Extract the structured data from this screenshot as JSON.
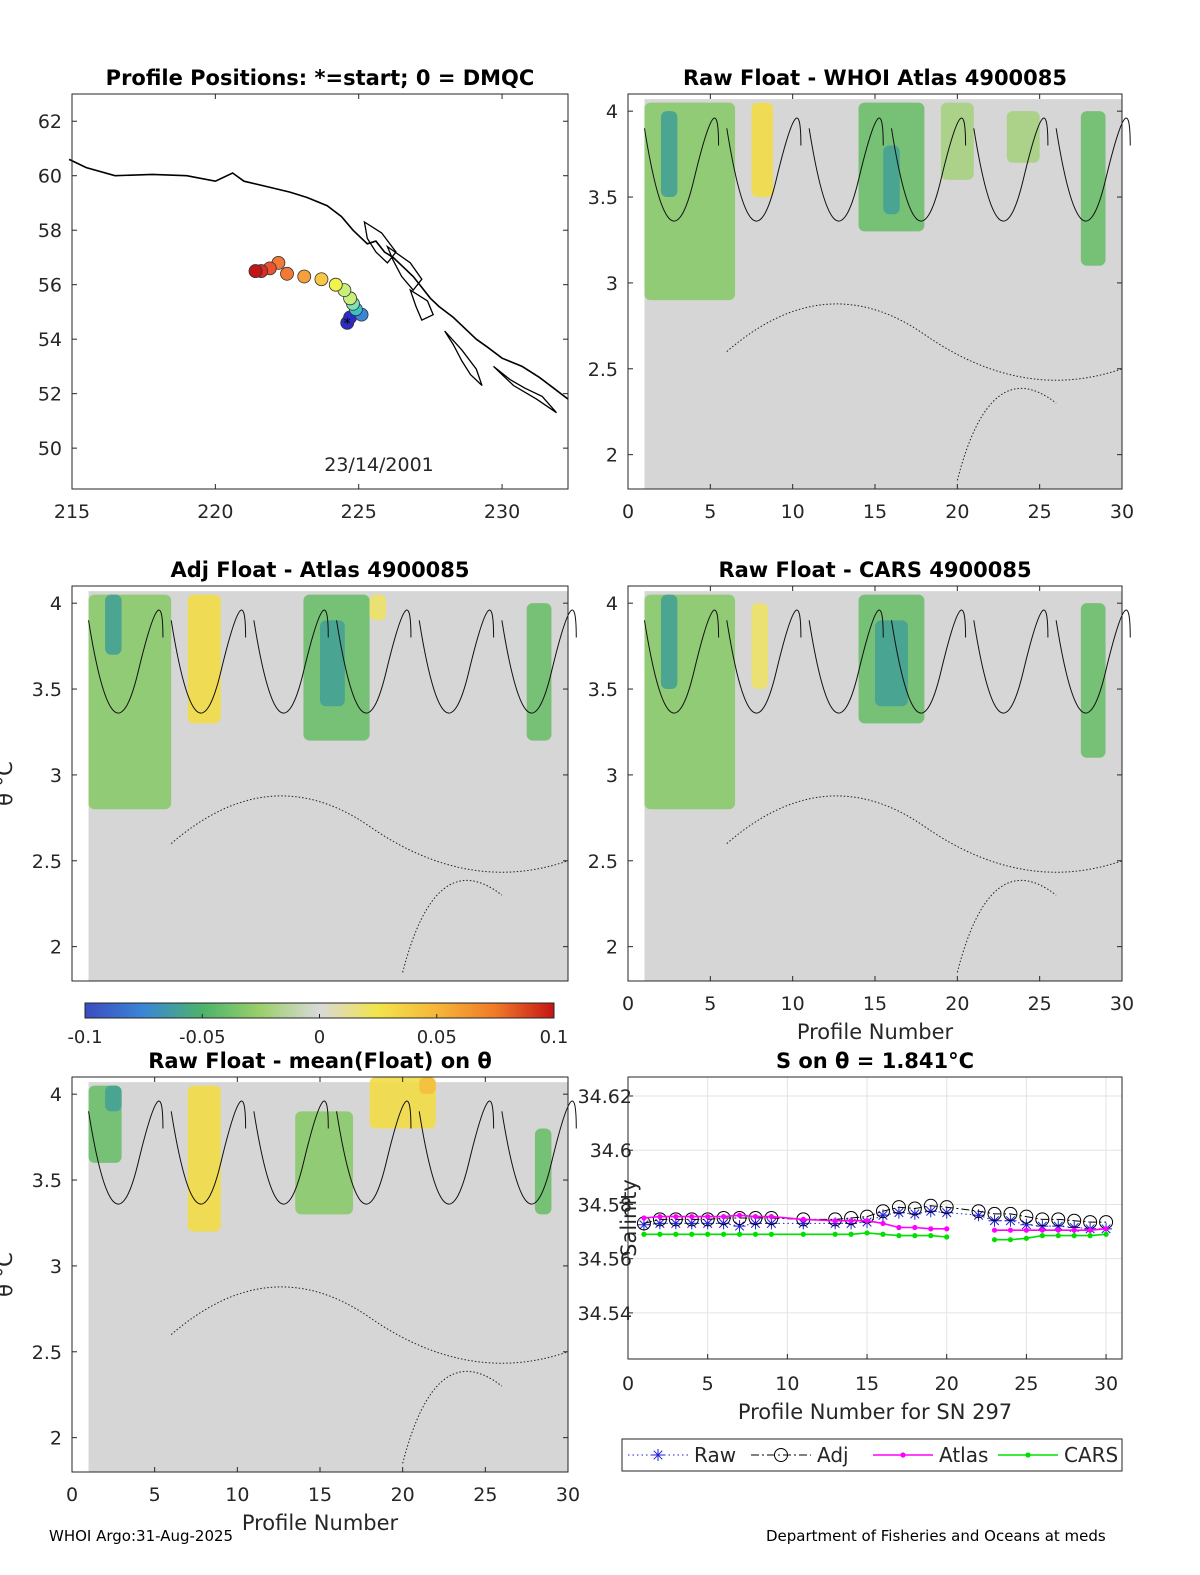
{
  "figure": {
    "footer_left": "WHOI Argo:31-Aug-2025",
    "footer_right": "Department of Fisheries and Oceans at meds"
  },
  "chart_data": [
    {
      "id": "map",
      "type": "scatter",
      "title": "Profile Positions: *=start; 0 = DMQC",
      "xlim": [
        215,
        232.3
      ],
      "ylim": [
        48.5,
        63.0
      ],
      "xticks": [
        "215",
        "220",
        "225",
        "230"
      ],
      "xtick_values": [
        215,
        220,
        225,
        230
      ],
      "yticks": [
        "50",
        "52",
        "54",
        "56",
        "58",
        "60",
        "62"
      ],
      "ytick_values": [
        50,
        52,
        54,
        56,
        58,
        60,
        62
      ],
      "annotation": "23/14/2001",
      "colors": [
        "#2b2bcc",
        "#3a86d6",
        "#37c2c8",
        "#7fe0b3",
        "#c8ef7a",
        "#f2f24d",
        "#f6c843",
        "#f6a03c",
        "#f27a35",
        "#e9532f",
        "#d92a24",
        "#c41515"
      ],
      "points": [
        {
          "lon": 224.6,
          "lat": 54.6
        },
        {
          "lon": 224.7,
          "lat": 54.8
        },
        {
          "lon": 225.1,
          "lat": 54.9
        },
        {
          "lon": 224.9,
          "lat": 55.1
        },
        {
          "lon": 224.8,
          "lat": 55.3
        },
        {
          "lon": 224.7,
          "lat": 55.5
        },
        {
          "lon": 224.5,
          "lat": 55.8
        },
        {
          "lon": 224.2,
          "lat": 56.0
        },
        {
          "lon": 223.7,
          "lat": 56.2
        },
        {
          "lon": 223.1,
          "lat": 56.3
        },
        {
          "lon": 222.5,
          "lat": 56.4
        },
        {
          "lon": 222.2,
          "lat": 56.8
        },
        {
          "lon": 221.9,
          "lat": 56.6
        },
        {
          "lon": 221.6,
          "lat": 56.5
        },
        {
          "lon": 221.4,
          "lat": 56.5
        }
      ]
    },
    {
      "id": "raw_whoi",
      "type": "heatmap",
      "title": "Raw Float - WHOI Atlas  4900085",
      "xlim": [
        0,
        30
      ],
      "ylim": [
        1.8,
        4.1
      ],
      "xticks": [
        "0",
        "5",
        "10",
        "15",
        "20",
        "25",
        "30"
      ],
      "xtick_values": [
        0,
        5,
        10,
        15,
        20,
        25,
        30
      ],
      "yticks": [
        "2",
        "2.5",
        "3",
        "3.5",
        "4"
      ],
      "ytick_values": [
        2,
        2.5,
        3,
        3.5,
        4
      ],
      "xlabel": "",
      "ylabel": "",
      "anomaly_patches": [
        {
          "p0": 1,
          "p1": 6.5,
          "t0": 2.9,
          "t1": 4.05,
          "v": -0.03
        },
        {
          "p0": 2,
          "p1": 3,
          "t0": 3.5,
          "t1": 4.0,
          "v": -0.06
        },
        {
          "p0": 7.5,
          "p1": 8.8,
          "t0": 3.5,
          "t1": 4.05,
          "v": 0.03
        },
        {
          "p0": 14,
          "p1": 18,
          "t0": 3.3,
          "t1": 4.05,
          "v": -0.04
        },
        {
          "p0": 15.5,
          "p1": 16.5,
          "t0": 3.4,
          "t1": 3.8,
          "v": -0.06
        },
        {
          "p0": 19,
          "p1": 21,
          "t0": 3.6,
          "t1": 4.05,
          "v": -0.02
        },
        {
          "p0": 27.5,
          "p1": 29,
          "t0": 3.1,
          "t1": 4.0,
          "v": -0.04
        },
        {
          "p0": 23,
          "p1": 25,
          "t0": 3.7,
          "t1": 4.0,
          "v": -0.02
        }
      ]
    },
    {
      "id": "adj_atlas",
      "type": "heatmap",
      "title": "Adj Float - Atlas  4900085",
      "xlim": [
        0,
        30
      ],
      "ylim": [
        1.8,
        4.1
      ],
      "xticks": [],
      "xtick_values": [],
      "yticks": [
        "2",
        "2.5",
        "3",
        "3.5",
        "4"
      ],
      "ytick_values": [
        2,
        2.5,
        3,
        3.5,
        4
      ],
      "xlabel": "",
      "ylabel": "θ °C",
      "anomaly_patches": [
        {
          "p0": 1,
          "p1": 6,
          "t0": 2.8,
          "t1": 4.05,
          "v": -0.03
        },
        {
          "p0": 2,
          "p1": 3,
          "t0": 3.7,
          "t1": 4.05,
          "v": -0.06
        },
        {
          "p0": 7,
          "p1": 9,
          "t0": 3.3,
          "t1": 4.05,
          "v": 0.03
        },
        {
          "p0": 14,
          "p1": 18,
          "t0": 3.2,
          "t1": 4.05,
          "v": -0.04
        },
        {
          "p0": 15,
          "p1": 16.5,
          "t0": 3.4,
          "t1": 3.9,
          "v": -0.06
        },
        {
          "p0": 27.5,
          "p1": 29,
          "t0": 3.2,
          "t1": 4.0,
          "v": -0.04
        },
        {
          "p0": 18,
          "p1": 19,
          "t0": 3.9,
          "t1": 4.05,
          "v": 0.02
        }
      ]
    },
    {
      "id": "raw_cars",
      "type": "heatmap",
      "title": "Raw Float - CARS  4900085",
      "xlim": [
        0,
        30
      ],
      "ylim": [
        1.8,
        4.1
      ],
      "xticks": [
        "0",
        "5",
        "10",
        "15",
        "20",
        "25",
        "30"
      ],
      "xtick_values": [
        0,
        5,
        10,
        15,
        20,
        25,
        30
      ],
      "yticks": [
        "2",
        "2.5",
        "3",
        "3.5",
        "4"
      ],
      "ytick_values": [
        2,
        2.5,
        3,
        3.5,
        4
      ],
      "xlabel": "Profile Number",
      "ylabel": "",
      "anomaly_patches": [
        {
          "p0": 1,
          "p1": 6.5,
          "t0": 2.8,
          "t1": 4.05,
          "v": -0.03
        },
        {
          "p0": 2,
          "p1": 3,
          "t0": 3.5,
          "t1": 4.05,
          "v": -0.06
        },
        {
          "p0": 7.5,
          "p1": 8.5,
          "t0": 3.5,
          "t1": 4.0,
          "v": 0.02
        },
        {
          "p0": 14,
          "p1": 18,
          "t0": 3.3,
          "t1": 4.05,
          "v": -0.04
        },
        {
          "p0": 15,
          "p1": 17,
          "t0": 3.4,
          "t1": 3.9,
          "v": -0.06
        },
        {
          "p0": 27.5,
          "p1": 29,
          "t0": 3.1,
          "t1": 4.0,
          "v": -0.04
        }
      ]
    },
    {
      "id": "colorbar",
      "type": "heatmap",
      "range": [
        -0.1,
        0.1
      ],
      "ticks": [
        "-0.1",
        "-0.05",
        "0",
        "0.05",
        "0.1"
      ],
      "tick_values": [
        -0.1,
        -0.05,
        0,
        0.05,
        0.1
      ],
      "stops": [
        "#3b4cc0",
        "#3a86d6",
        "#4cb36a",
        "#9bd06c",
        "#d9d9d9",
        "#f2e44a",
        "#f6b63a",
        "#f07a28",
        "#c41515"
      ]
    },
    {
      "id": "raw_mean",
      "type": "heatmap",
      "title": "Raw Float - mean(Float) on θ",
      "xlim": [
        0,
        30
      ],
      "ylim": [
        1.8,
        4.1
      ],
      "xticks": [
        "0",
        "5",
        "10",
        "15",
        "20",
        "25",
        "30"
      ],
      "xtick_values": [
        0,
        5,
        10,
        15,
        20,
        25,
        30
      ],
      "yticks": [
        "2",
        "2.5",
        "3",
        "3.5",
        "4"
      ],
      "ytick_values": [
        2,
        2.5,
        3,
        3.5,
        4
      ],
      "xlabel": "Profile Number",
      "ylabel": "θ °C",
      "anomaly_patches": [
        {
          "p0": 1,
          "p1": 3,
          "t0": 3.6,
          "t1": 4.05,
          "v": -0.04
        },
        {
          "p0": 2,
          "p1": 3,
          "t0": 3.9,
          "t1": 4.05,
          "v": -0.06
        },
        {
          "p0": 7,
          "p1": 9,
          "t0": 3.2,
          "t1": 4.05,
          "v": 0.03
        },
        {
          "p0": 13.5,
          "p1": 17,
          "t0": 3.3,
          "t1": 3.9,
          "v": -0.03
        },
        {
          "p0": 18,
          "p1": 22,
          "t0": 3.8,
          "t1": 4.1,
          "v": 0.03
        },
        {
          "p0": 21,
          "p1": 22,
          "t0": 4.0,
          "t1": 4.1,
          "v": 0.045
        },
        {
          "p0": 28,
          "p1": 29,
          "t0": 3.3,
          "t1": 3.8,
          "v": -0.04
        }
      ]
    },
    {
      "id": "salinity",
      "type": "line",
      "title": "S on θ = 1.841°C",
      "xlabel": "Profile Number for SN 297",
      "ylabel": "Salinity",
      "xlim": [
        0,
        31
      ],
      "ylim": [
        34.523,
        34.627
      ],
      "xticks": [
        "0",
        "5",
        "10",
        "15",
        "20",
        "25",
        "30"
      ],
      "xtick_values": [
        0,
        5,
        10,
        15,
        20,
        25,
        30
      ],
      "yticks": [
        "34.54",
        "34.56",
        "34.58",
        "34.6",
        "34.62"
      ],
      "ytick_values": [
        34.54,
        34.56,
        34.58,
        34.6,
        34.62
      ],
      "series": [
        {
          "name": "Raw",
          "color": "#1f1fd6",
          "style": "dotted",
          "marker": "star",
          "x": [
            1,
            2,
            3,
            4,
            5,
            6,
            7,
            8,
            9,
            11,
            13,
            14,
            15,
            16,
            17,
            18,
            19,
            20,
            22,
            23,
            24,
            25,
            26,
            27,
            28,
            29,
            30
          ],
          "y": [
            34.5725,
            34.573,
            34.573,
            34.573,
            34.573,
            34.573,
            34.572,
            34.573,
            34.573,
            34.573,
            34.573,
            34.573,
            34.5735,
            34.576,
            34.577,
            34.5765,
            34.5775,
            34.577,
            34.576,
            34.574,
            34.574,
            34.5725,
            34.572,
            34.572,
            34.5715,
            34.571,
            34.571
          ]
        },
        {
          "name": "Adj",
          "color": "#000000",
          "style": "dashdot",
          "marker": "circle",
          "x": [
            1,
            2,
            3,
            4,
            5,
            6,
            7,
            8,
            9,
            11,
            13,
            14,
            15,
            16,
            17,
            18,
            19,
            20,
            22,
            23,
            24,
            25,
            26,
            27,
            28,
            29,
            30
          ],
          "y": [
            34.573,
            34.5745,
            34.5745,
            34.5745,
            34.5745,
            34.575,
            34.575,
            34.575,
            34.575,
            34.5745,
            34.5745,
            34.575,
            34.5755,
            34.5775,
            34.579,
            34.5785,
            34.5795,
            34.579,
            34.5775,
            34.5765,
            34.5765,
            34.5755,
            34.5745,
            34.5745,
            34.574,
            34.5735,
            34.5735
          ]
        },
        {
          "name": "Atlas",
          "color": "#ff00ff",
          "style": "solid",
          "marker": "dot",
          "segments": [
            {
              "x": [
                1,
                2,
                3,
                4,
                5,
                6,
                7,
                8,
                9,
                11,
                13,
                14,
                15,
                16,
                17,
                18,
                19,
                20
              ],
              "y": [
                34.575,
                34.5755,
                34.5755,
                34.5755,
                34.5755,
                34.5755,
                34.576,
                34.5755,
                34.5755,
                34.5745,
                34.574,
                34.574,
                34.574,
                34.573,
                34.5715,
                34.5715,
                34.571,
                34.571
              ]
            },
            {
              "x": [
                23,
                24,
                25,
                26,
                27,
                28,
                29,
                30
              ],
              "y": [
                34.5705,
                34.5705,
                34.5705,
                34.5705,
                34.5705,
                34.5705,
                34.5705,
                34.571
              ]
            }
          ]
        },
        {
          "name": "CARS",
          "color": "#00e000",
          "style": "solid",
          "marker": "dot",
          "segments": [
            {
              "x": [
                1,
                2,
                3,
                4,
                5,
                6,
                7,
                8,
                9,
                11,
                13,
                14,
                15,
                16,
                17,
                18,
                19,
                20
              ],
              "y": [
                34.569,
                34.569,
                34.569,
                34.569,
                34.569,
                34.569,
                34.569,
                34.569,
                34.569,
                34.569,
                34.569,
                34.569,
                34.5695,
                34.569,
                34.5685,
                34.5685,
                34.5685,
                34.568
              ]
            },
            {
              "x": [
                23,
                24,
                25,
                26,
                27,
                28,
                29,
                30
              ],
              "y": [
                34.567,
                34.567,
                34.5675,
                34.5685,
                34.5685,
                34.5685,
                34.5685,
                34.569
              ]
            }
          ]
        }
      ]
    }
  ]
}
